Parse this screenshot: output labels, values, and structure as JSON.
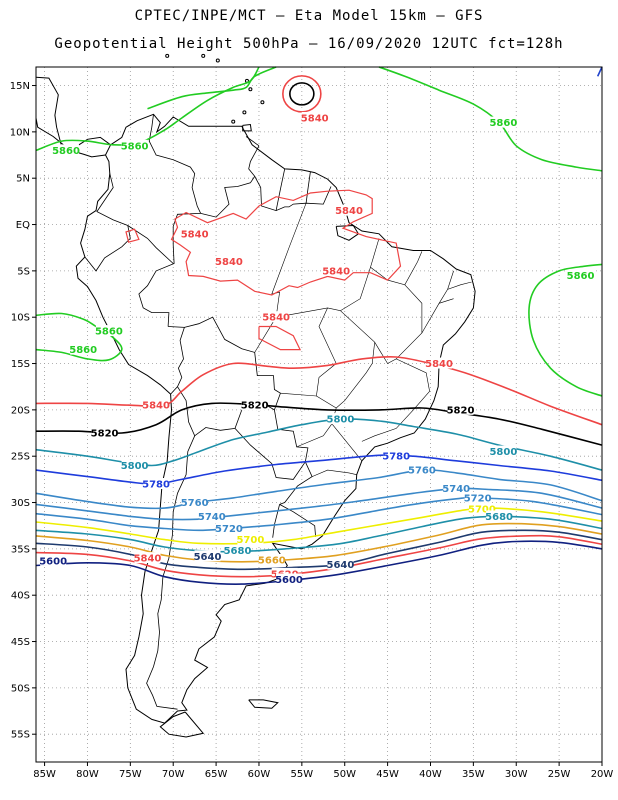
{
  "title_line1": "CPTEC/INPE/MCT –  Eta Model 15km – GFS",
  "title_line2": "Geopotential Height 500hPa – 16/09/2020 12UTC fct=128h",
  "map": {
    "lon_range": [
      -86,
      -20
    ],
    "lat_range": [
      -58,
      17
    ],
    "grid": "dotted",
    "lat_ticks": [
      "15N",
      "10N",
      "5N",
      "EQ",
      "5S",
      "10S",
      "15S",
      "20S",
      "25S",
      "30S",
      "35S",
      "40S",
      "45S",
      "50S",
      "55S"
    ],
    "lon_ticks": [
      "85W",
      "80W",
      "75W",
      "70W",
      "65W",
      "60W",
      "55W",
      "50W",
      "45W",
      "40W",
      "35W",
      "30W",
      "25W",
      "20W"
    ]
  },
  "contours": [
    {
      "level": "5860",
      "color": "#22cc22",
      "labels": [
        {
          "text": "5860",
          "lon": -31.5,
          "lat": 11
        },
        {
          "text": "5860",
          "lon": -82.5,
          "lat": 8
        },
        {
          "text": "5860",
          "lon": -74.5,
          "lat": 8.5
        },
        {
          "text": "5860",
          "lon": -22.5,
          "lat": -5.5
        },
        {
          "text": "5860",
          "lon": -77.5,
          "lat": -11.5
        },
        {
          "text": "5860",
          "lon": -80.5,
          "lat": -13.5
        }
      ]
    },
    {
      "level": "5840",
      "color": "#ee4444",
      "labels": [
        {
          "text": "5840",
          "lon": -53.5,
          "lat": 11.5
        },
        {
          "text": "5840",
          "lon": -49.5,
          "lat": 1.5
        },
        {
          "text": "5840",
          "lon": -67.5,
          "lat": -1
        },
        {
          "text": "5840",
          "lon": -63.5,
          "lat": -4
        },
        {
          "text": "5840",
          "lon": -51,
          "lat": -5
        },
        {
          "text": "5840",
          "lon": -58,
          "lat": -10
        },
        {
          "text": "5840",
          "lon": -39,
          "lat": -15
        },
        {
          "text": "5840",
          "lon": -72,
          "lat": -19.5
        },
        {
          "text": "5840",
          "lon": -73,
          "lat": -36
        }
      ]
    },
    {
      "level": "5820",
      "color": "#000000",
      "labels": [
        {
          "text": "5820",
          "lon": -60.5,
          "lat": -19.5
        },
        {
          "text": "5820",
          "lon": -36.5,
          "lat": -20
        },
        {
          "text": "5820",
          "lon": -78,
          "lat": -22.5
        }
      ]
    },
    {
      "level": "5800",
      "color": "#1e8fa8",
      "labels": [
        {
          "text": "5800",
          "lon": -50.5,
          "lat": -21
        },
        {
          "text": "5800",
          "lon": -31.5,
          "lat": -24.5
        },
        {
          "text": "5800",
          "lon": -74.5,
          "lat": -26
        }
      ]
    },
    {
      "level": "5780",
      "color": "#1e3cdc",
      "labels": [
        {
          "text": "5780",
          "lon": -44,
          "lat": -25
        },
        {
          "text": "5780",
          "lon": -72,
          "lat": -28
        }
      ]
    },
    {
      "level": "5760",
      "color": "#3a88c8",
      "labels": [
        {
          "text": "5760",
          "lon": -41,
          "lat": -26.5
        },
        {
          "text": "5760",
          "lon": -67.5,
          "lat": -30
        }
      ]
    },
    {
      "level": "5740",
      "color": "#3a88c8",
      "labels": [
        {
          "text": "5740",
          "lon": -37,
          "lat": -28.5
        },
        {
          "text": "5740",
          "lon": -65.5,
          "lat": -31.5
        }
      ]
    },
    {
      "level": "5720",
      "color": "#3a88c8",
      "labels": [
        {
          "text": "5720",
          "lon": -34.5,
          "lat": -29.5
        },
        {
          "text": "5720",
          "lon": -63.5,
          "lat": -32.8
        }
      ]
    },
    {
      "level": "5700",
      "color": "#eeee00",
      "labels": [
        {
          "text": "5700",
          "lon": -34,
          "lat": -30.7
        },
        {
          "text": "5700",
          "lon": -61,
          "lat": -34
        }
      ]
    },
    {
      "level": "5680",
      "color": "#1e8fa8",
      "labels": [
        {
          "text": "5680",
          "lon": -32,
          "lat": -31.5
        },
        {
          "text": "5680",
          "lon": -62.5,
          "lat": -35.2
        }
      ]
    },
    {
      "level": "5660",
      "color": "#e0a020",
      "labels": [
        {
          "text": "5660",
          "lon": -58.5,
          "lat": -36.2
        }
      ]
    },
    {
      "level": "5640",
      "color": "#1e3a6e",
      "labels": [
        {
          "text": "5640",
          "lon": -50.5,
          "lat": -36.7
        },
        {
          "text": "5640",
          "lon": -66,
          "lat": -35.8
        }
      ]
    },
    {
      "level": "5620",
      "color": "#ee4444",
      "labels": [
        {
          "text": "5620",
          "lon": -57,
          "lat": -37.7
        }
      ]
    },
    {
      "level": "5600",
      "color": "#102080",
      "labels": [
        {
          "text": "5600",
          "lon": -56.5,
          "lat": -38.3
        },
        {
          "text": "5600",
          "lon": -84,
          "lat": -36.3
        }
      ]
    }
  ]
}
